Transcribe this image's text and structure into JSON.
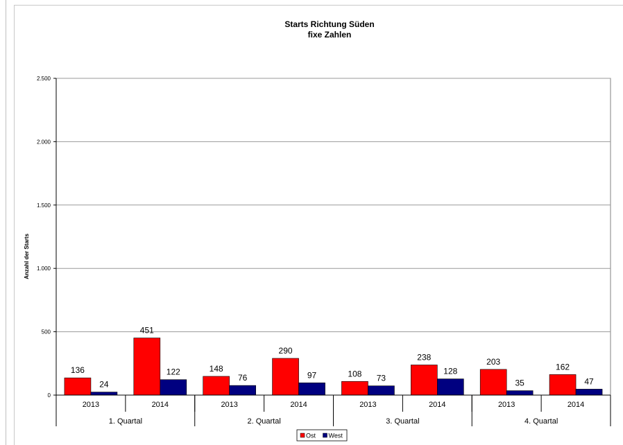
{
  "chart_data": {
    "type": "bar",
    "title": "Starts Richtung Süden",
    "subtitle": "fixe Zahlen",
    "ylabel": "Anzahl der Starts",
    "xlabel": "",
    "ylim": [
      0,
      2500
    ],
    "yticks": [
      0,
      500,
      1000,
      1500,
      2000,
      2500
    ],
    "ytick_labels": [
      "0",
      "500",
      "1.000",
      "1.500",
      "2.000",
      "2.500"
    ],
    "grid": true,
    "legend_position": "bottom",
    "categories": [
      "2013",
      "2014",
      "2013",
      "2014",
      "2013",
      "2014",
      "2013",
      "2014"
    ],
    "groups": [
      {
        "label": "1. Quartal",
        "span": 2
      },
      {
        "label": "2. Quartal",
        "span": 2
      },
      {
        "label": "3. Quartal",
        "span": 2
      },
      {
        "label": "4. Quartal",
        "span": 2
      }
    ],
    "series": [
      {
        "name": "Ost",
        "color": "#ff0000",
        "values": [
          136,
          451,
          148,
          290,
          108,
          238,
          203,
          162
        ]
      },
      {
        "name": "West",
        "color": "#000080",
        "values": [
          24,
          122,
          76,
          97,
          73,
          128,
          35,
          47
        ]
      }
    ]
  }
}
